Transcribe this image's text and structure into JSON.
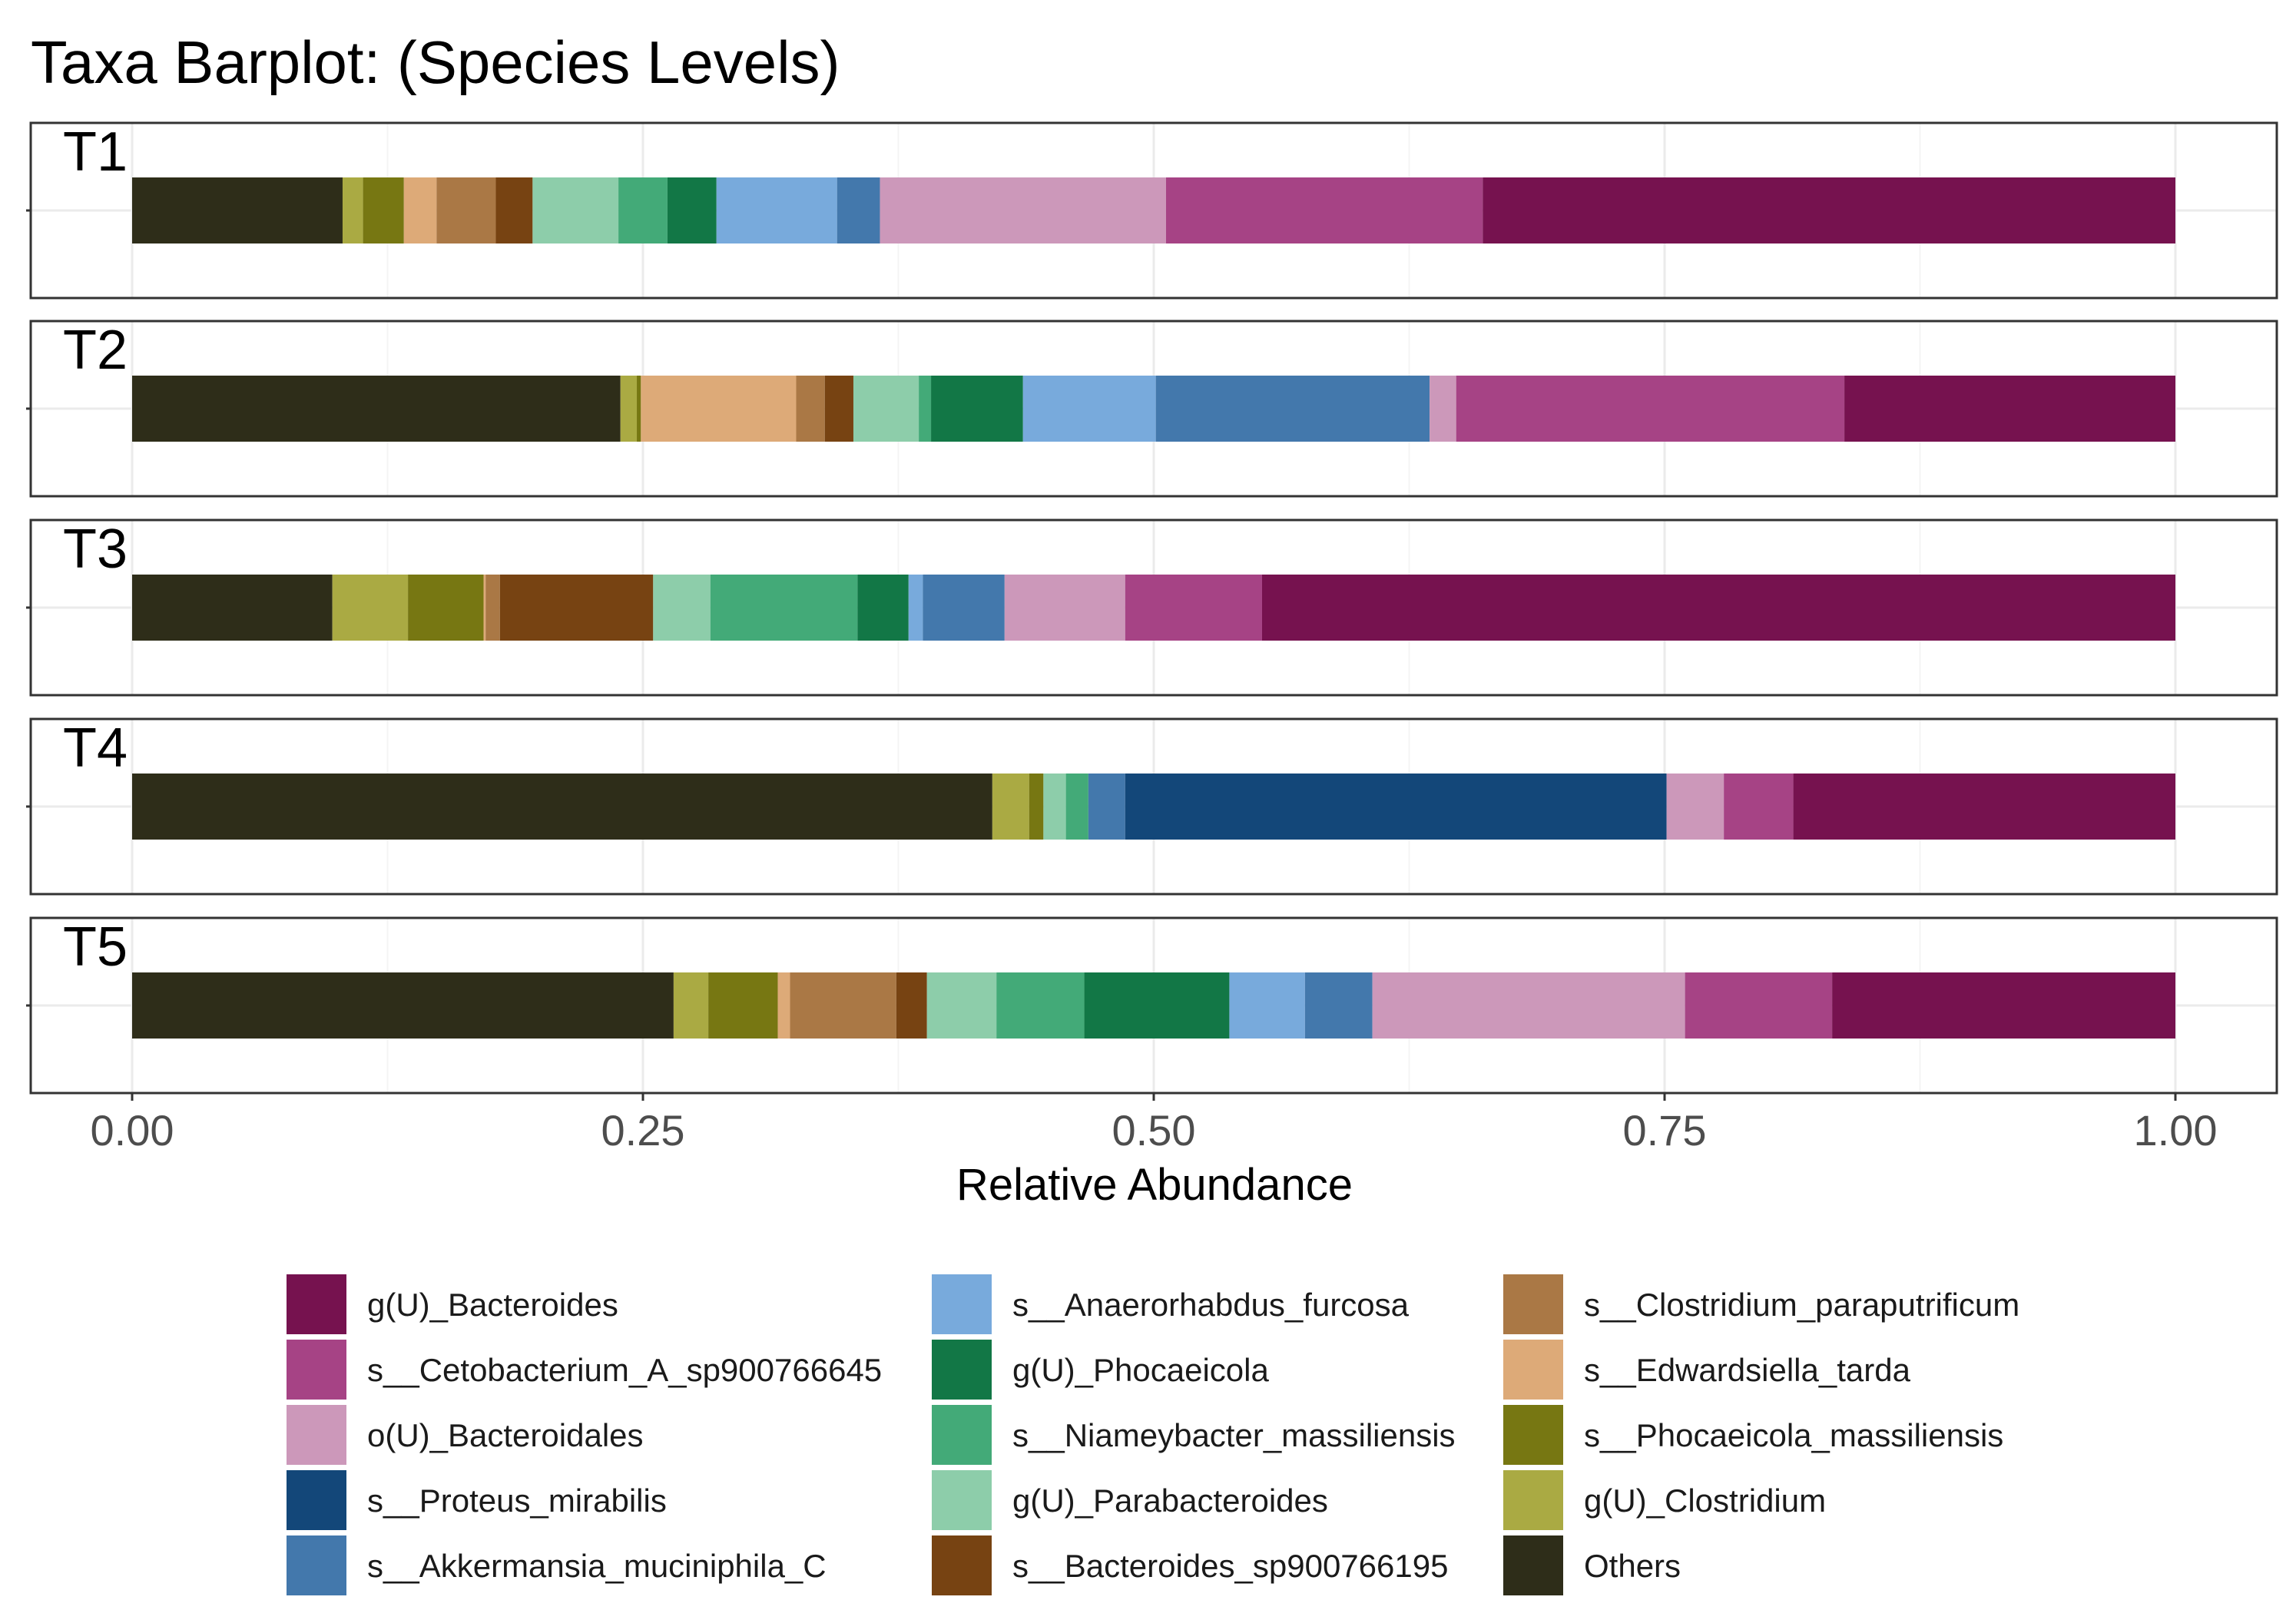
{
  "chart_data": {
    "type": "bar",
    "orientation": "horizontal-stacked",
    "title": "Taxa Barplot: (Species Levels)",
    "xlabel": "Relative Abundance",
    "ylabel": "",
    "xlim": [
      0,
      1
    ],
    "x_ticks": [
      "0.00",
      "0.25",
      "0.50",
      "0.75",
      "1.00"
    ],
    "x_tick_values": [
      0,
      0.25,
      0.5,
      0.75,
      1.0
    ],
    "grid": true,
    "legend_position": "bottom",
    "stack_order_left_to_right": [
      "Others",
      "g(U)_Clostridium",
      "s__Phocaeicola_massiliensis",
      "s__Edwardsiella_tarda",
      "s__Clostridium_paraputrificum",
      "s__Bacteroides_sp900766195",
      "g(U)_Parabacteroides",
      "s__Niameybacter_massiliensis",
      "g(U)_Phocaeicola",
      "s__Anaerorhabdus_furcosa",
      "s__Akkermansia_muciniphila_C",
      "s__Proteus_mirabilis",
      "o(U)_Bacteroidales",
      "s__Cetobacterium_A_sp900766645",
      "g(U)_Bacteroides"
    ],
    "legend": [
      {
        "name": "g(U)_Bacteroides",
        "color": "#76124F"
      },
      {
        "name": "s__Cetobacterium_A_sp900766645",
        "color": "#A64385"
      },
      {
        "name": "o(U)_Bacteroidales",
        "color": "#CC98BA"
      },
      {
        "name": "s__Proteus_mirabilis",
        "color": "#134779"
      },
      {
        "name": "s__Akkermansia_muciniphila_C",
        "color": "#4378AC"
      },
      {
        "name": "s__Anaerorhabdus_furcosa",
        "color": "#78AADC"
      },
      {
        "name": "g(U)_Phocaeicola",
        "color": "#127746"
      },
      {
        "name": "s__Niameybacter_massiliensis",
        "color": "#43AA78"
      },
      {
        "name": "g(U)_Parabacteroides",
        "color": "#8DCDAA"
      },
      {
        "name": "s__Bacteroides_sp900766195",
        "color": "#774312"
      },
      {
        "name": "s__Clostridium_paraputrificum",
        "color": "#AA7845"
      },
      {
        "name": "s__Edwardsiella_tarda",
        "color": "#DDAA78"
      },
      {
        "name": "s__Phocaeicola_massiliensis",
        "color": "#777712"
      },
      {
        "name": "g(U)_Clostridium",
        "color": "#AAAA43"
      },
      {
        "name": "Others",
        "color": "#2E2D19"
      }
    ],
    "series": [
      {
        "name": "T1",
        "values": {
          "Others": 0.103,
          "g(U)_Clostridium": 0.01,
          "s__Phocaeicola_massiliensis": 0.02,
          "s__Edwardsiella_tarda": 0.016,
          "s__Clostridium_paraputrificum": 0.029,
          "s__Bacteroides_sp900766195": 0.018,
          "g(U)_Parabacteroides": 0.042,
          "s__Niameybacter_massiliensis": 0.024,
          "g(U)_Phocaeicola": 0.024,
          "s__Anaerorhabdus_furcosa": 0.059,
          "s__Akkermansia_muciniphila_C": 0.021,
          "s__Proteus_mirabilis": 0.0,
          "o(U)_Bacteroidales": 0.14,
          "s__Cetobacterium_A_sp900766645": 0.155,
          "g(U)_Bacteroides": 0.339
        }
      },
      {
        "name": "T2",
        "values": {
          "Others": 0.239,
          "g(U)_Clostridium": 0.008,
          "s__Phocaeicola_massiliensis": 0.002,
          "s__Edwardsiella_tarda": 0.076,
          "s__Clostridium_paraputrificum": 0.014,
          "s__Bacteroides_sp900766195": 0.014,
          "g(U)_Parabacteroides": 0.032,
          "s__Niameybacter_massiliensis": 0.006,
          "g(U)_Phocaeicola": 0.045,
          "s__Anaerorhabdus_furcosa": 0.065,
          "s__Akkermansia_muciniphila_C": 0.134,
          "s__Proteus_mirabilis": 0.0,
          "o(U)_Bacteroidales": 0.013,
          "s__Cetobacterium_A_sp900766645": 0.19,
          "g(U)_Bacteroides": 0.162
        }
      },
      {
        "name": "T3",
        "values": {
          "Others": 0.098,
          "g(U)_Clostridium": 0.037,
          "s__Phocaeicola_massiliensis": 0.037,
          "s__Edwardsiella_tarda": 0.001,
          "s__Clostridium_paraputrificum": 0.007,
          "s__Bacteroides_sp900766195": 0.075,
          "g(U)_Parabacteroides": 0.028,
          "s__Niameybacter_massiliensis": 0.072,
          "g(U)_Phocaeicola": 0.025,
          "s__Anaerorhabdus_furcosa": 0.007,
          "s__Akkermansia_muciniphila_C": 0.04,
          "s__Proteus_mirabilis": 0.0,
          "o(U)_Bacteroidales": 0.059,
          "s__Cetobacterium_A_sp900766645": 0.067,
          "g(U)_Bacteroides": 0.447
        }
      },
      {
        "name": "T4",
        "values": {
          "Others": 0.421,
          "g(U)_Clostridium": 0.018,
          "s__Phocaeicola_massiliensis": 0.007,
          "s__Edwardsiella_tarda": 0.0,
          "s__Clostridium_paraputrificum": 0.0,
          "s__Bacteroides_sp900766195": 0.0,
          "g(U)_Parabacteroides": 0.011,
          "s__Niameybacter_massiliensis": 0.011,
          "g(U)_Phocaeicola": 0.0,
          "s__Anaerorhabdus_furcosa": 0.0,
          "s__Akkermansia_muciniphila_C": 0.018,
          "s__Proteus_mirabilis": 0.265,
          "o(U)_Bacteroidales": 0.028,
          "s__Cetobacterium_A_sp900766645": 0.034,
          "g(U)_Bacteroides": 0.187
        }
      },
      {
        "name": "T5",
        "values": {
          "Others": 0.265,
          "g(U)_Clostridium": 0.017,
          "s__Phocaeicola_massiliensis": 0.034,
          "s__Edwardsiella_tarda": 0.006,
          "s__Clostridium_paraputrificum": 0.052,
          "s__Bacteroides_sp900766195": 0.015,
          "g(U)_Parabacteroides": 0.034,
          "s__Niameybacter_massiliensis": 0.043,
          "g(U)_Phocaeicola": 0.071,
          "s__Anaerorhabdus_furcosa": 0.037,
          "s__Akkermansia_muciniphila_C": 0.033,
          "s__Proteus_mirabilis": 0.0,
          "o(U)_Bacteroidales": 0.153,
          "s__Cetobacterium_A_sp900766645": 0.072,
          "g(U)_Bacteroides": 0.168
        }
      }
    ]
  }
}
